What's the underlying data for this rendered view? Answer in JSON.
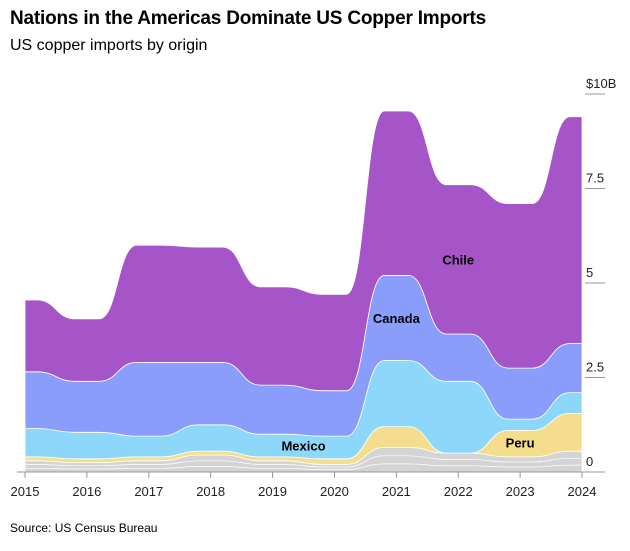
{
  "header": {
    "title": "Nations in the Americas Dominate US Copper Imports",
    "subtitle": "US copper imports by origin"
  },
  "footer": {
    "source": "Source: US Census Bureau"
  },
  "chart_data": {
    "type": "area",
    "style": "stacked streamgraph",
    "title": "Nations in the Americas Dominate US Copper Imports",
    "subtitle": "US copper imports by origin",
    "x": [
      2015,
      2016,
      2017,
      2018,
      2019,
      2020,
      2021,
      2022,
      2023,
      2024
    ],
    "x_tick_labels": [
      "2015",
      "2016",
      "2017",
      "2018",
      "2019",
      "2020",
      "2021",
      "2022",
      "2023",
      "2024"
    ],
    "y_ticks": [
      0,
      2.5,
      5,
      7.5,
      10
    ],
    "y_tick_labels": [
      "0",
      "2.5",
      "5",
      "7.5",
      "$10B"
    ],
    "ylim": [
      0,
      10
    ],
    "y_axis_side": "right",
    "series": [
      {
        "key": "other",
        "color": "#d4d4d4",
        "values": [
          0.3,
          0.25,
          0.3,
          0.45,
          0.3,
          0.2,
          0.65,
          0.5,
          0.4,
          0.55
        ]
      },
      {
        "key": "peru",
        "name": "Peru",
        "color": "#f5dd8e",
        "values": [
          0.1,
          0.1,
          0.1,
          0.1,
          0.1,
          0.15,
          0.55,
          0.0,
          0.7,
          1.0
        ]
      },
      {
        "key": "mexico",
        "name": "Mexico",
        "color": "#8dd7fb",
        "values": [
          0.75,
          0.7,
          0.55,
          0.7,
          0.6,
          0.6,
          1.75,
          1.9,
          0.3,
          0.55
        ]
      },
      {
        "key": "canada",
        "name": "Canada",
        "color": "#8b9dfb",
        "values": [
          1.5,
          1.35,
          1.95,
          1.65,
          1.3,
          1.2,
          2.25,
          1.25,
          1.35,
          1.3
        ]
      },
      {
        "key": "chile",
        "name": "Chile",
        "color": "#a555c7",
        "values": [
          1.9,
          1.65,
          3.1,
          3.05,
          2.6,
          2.55,
          4.35,
          3.95,
          4.35,
          6.0
        ]
      }
    ],
    "legend": "labels placed on areas",
    "grid": false
  }
}
